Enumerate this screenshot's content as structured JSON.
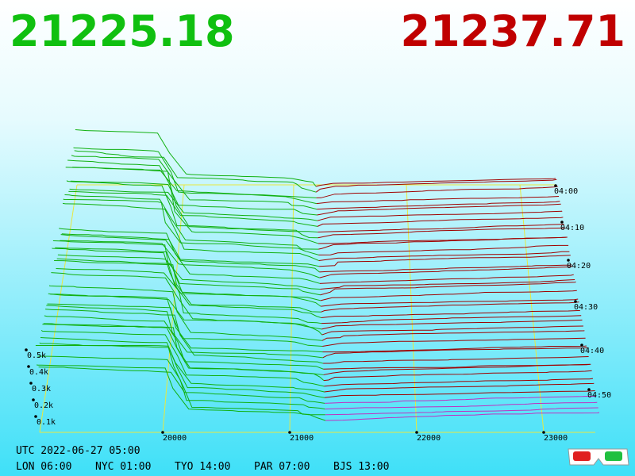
{
  "header": {
    "bid": "21225.18",
    "ask": "21237.71"
  },
  "axes": {
    "depth_labels": [
      "0.5k",
      "0.4k",
      "0.3k",
      "0.2k",
      "0.1k"
    ],
    "price_labels": [
      "20000",
      "21000",
      "22000",
      "23000"
    ],
    "time_labels": [
      "04:00",
      "04:10",
      "04:20",
      "04:30",
      "04:40",
      "04:50"
    ]
  },
  "footer": {
    "utc": "UTC 2022-06-27 05:00",
    "clocks": [
      "LON 06:00",
      "NYC 01:00",
      "TYO 14:00",
      "PAR 07:00",
      "BJS 13:00"
    ]
  }
}
